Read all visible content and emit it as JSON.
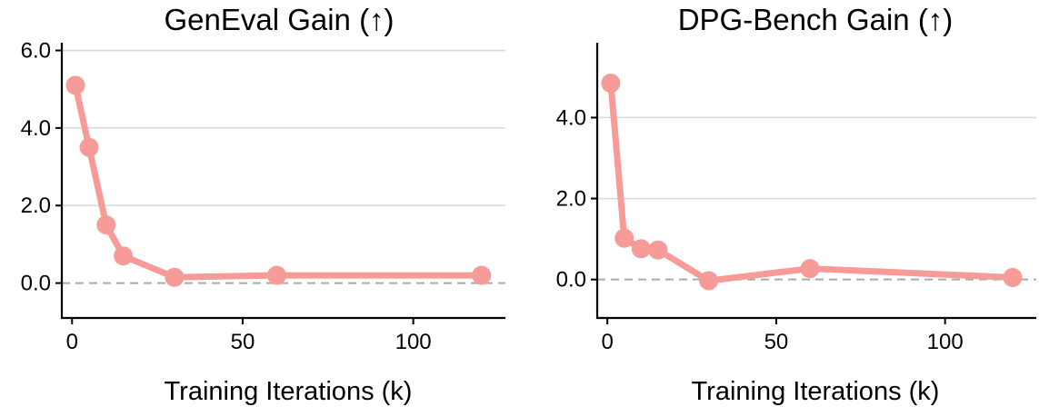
{
  "colors": {
    "series": "#f79b98",
    "grid": "#d9d9d9",
    "baseline": "#aaaaaa",
    "axis": "#000000"
  },
  "chart_data": [
    {
      "type": "line",
      "title": "GenEval Gain (↑)",
      "xlabel": "Training Iterations (k)",
      "ylabel": "",
      "xlim": [
        -3,
        127
      ],
      "ylim": [
        -0.9,
        6.2
      ],
      "grid": true,
      "baseline_y": 0,
      "xticks": [
        0,
        50,
        100
      ],
      "xtick_labels": [
        "0",
        "50",
        "100"
      ],
      "yticks": [
        0,
        2,
        4,
        6
      ],
      "ytick_labels": [
        "0.0",
        "2.0",
        "4.0",
        "6.0"
      ],
      "series": [
        {
          "name": "GenEval Gain",
          "x": [
            1,
            5,
            10,
            15,
            30,
            60,
            120
          ],
          "values": [
            5.1,
            3.5,
            1.5,
            0.7,
            0.15,
            0.2,
            0.2
          ]
        }
      ]
    },
    {
      "type": "line",
      "title": "DPG-Bench Gain (↑)",
      "xlabel": "Training Iterations (k)",
      "ylabel": "",
      "xlim": [
        -3,
        127
      ],
      "ylim": [
        -0.95,
        5.85
      ],
      "grid": true,
      "baseline_y": 0,
      "xticks": [
        0,
        50,
        100
      ],
      "xtick_labels": [
        "0",
        "50",
        "100"
      ],
      "yticks": [
        0,
        2,
        4
      ],
      "ytick_labels": [
        "0.0",
        "2.0",
        "4.0"
      ],
      "series": [
        {
          "name": "DPG-Bench Gain",
          "x": [
            1,
            5,
            10,
            15,
            30,
            60,
            120
          ],
          "values": [
            4.85,
            1.02,
            0.76,
            0.73,
            -0.03,
            0.27,
            0.05
          ]
        }
      ]
    }
  ]
}
